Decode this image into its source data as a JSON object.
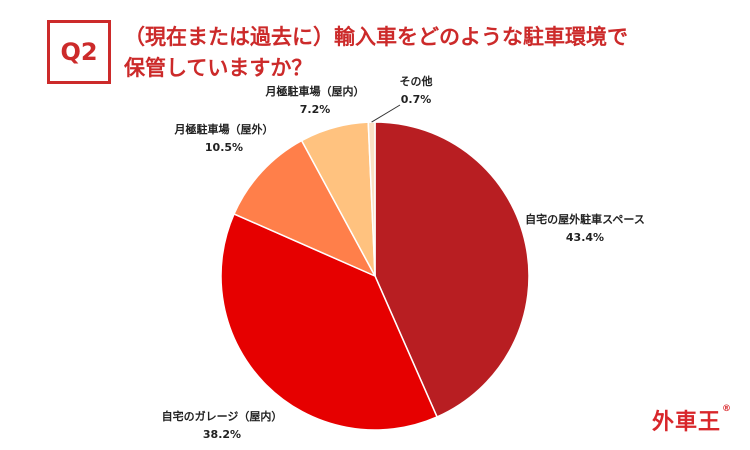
{
  "header": {
    "badge": "Q2",
    "title_line1": "（現在または過去に）輸入車をどのような駐車環境で",
    "title_line2": "保管していますか？"
  },
  "chart_data": {
    "type": "pie",
    "title": "",
    "slices": [
      {
        "label": "自宅の屋外駐車スペース",
        "value": 43.4,
        "display": "43.4%",
        "color": "#b81e22"
      },
      {
        "label": "自宅のガレージ（屋内）",
        "value": 38.2,
        "display": "38.2%",
        "color": "#e60000"
      },
      {
        "label": "月極駐車場（屋外）",
        "value": 10.5,
        "display": "10.5%",
        "color": "#ff7f4a"
      },
      {
        "label": "月極駐車場（屋内）",
        "value": 7.2,
        "display": "7.2%",
        "color": "#ffc27f"
      },
      {
        "label": "その他",
        "value": 0.7,
        "display": "0.7%",
        "color": "#fbe0c4"
      }
    ]
  },
  "brand": {
    "logo_text": "外車王",
    "logo_mark": "®"
  }
}
